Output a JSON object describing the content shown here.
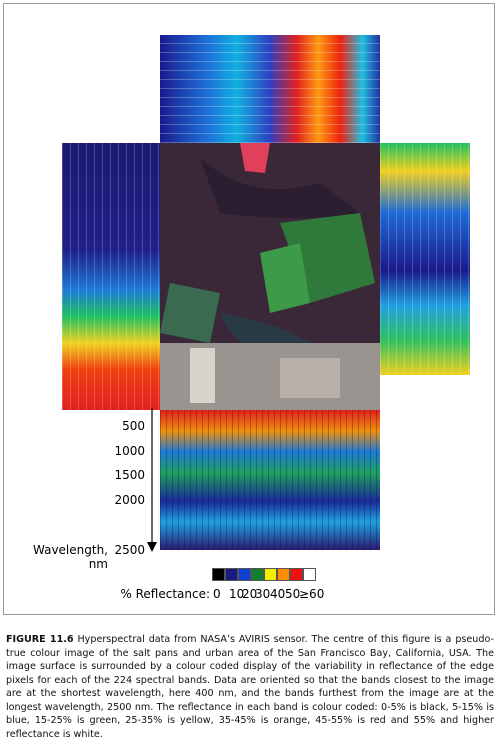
{
  "figure": {
    "wavelength_labels": [
      "500",
      "1000",
      "1500",
      "2000",
      "2500"
    ],
    "wavelength_axis_label": "Wavelength, nm",
    "legend": {
      "title": "% Reflectance:",
      "labels": [
        "0",
        "10",
        "20",
        "30",
        "40",
        "50",
        "≥60"
      ]
    }
  },
  "caption": {
    "label": "FIGURE 11.6",
    "text": "Hyperspectral data from NASA’s AVIRIS sensor. The centre of this figure is a pseudo-true colour image of the salt pans and urban area of the San Francisco Bay, California, USA. The image surface is surrounded by a colour coded display of the variability in reflectance of the edge pixels for each of the 224 spectral bands. Data are oriented so that the bands closest to the image are at the shortest wavelength, here 400 nm, and the bands furthest from the image are at the longest wavelength, 2500 nm. The reflectance in each band is colour coded: 0-5% is black, 5-15% is blue, 15-25% is green, 25-35% is yellow, 35-45% is orange, 45-55% is red and 55% and higher reflectance is white."
  }
}
